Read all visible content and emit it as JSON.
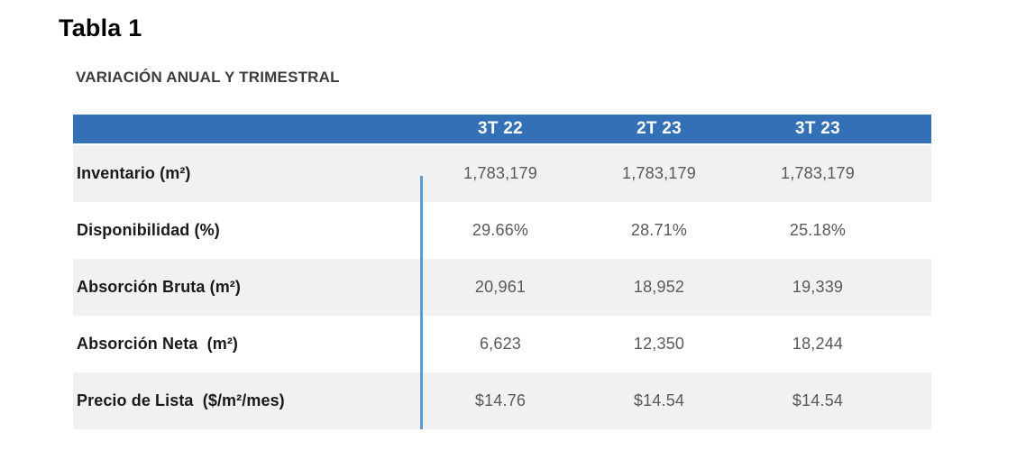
{
  "page": {
    "title": "Tabla 1"
  },
  "table": {
    "subtitle": "VARIACIÓN ANUAL Y TRIMESTRAL",
    "columns": [
      "3T 22",
      "2T 23",
      "3T 23"
    ],
    "rows": [
      {
        "label": "Inventario (m²)",
        "values": [
          "1,783,179",
          "1,783,179",
          "1,783,179"
        ]
      },
      {
        "label": "Disponibilidad (%)",
        "values": [
          "29.66%",
          "28.71%",
          "25.18%"
        ]
      },
      {
        "label": "Absorción Bruta (m²)",
        "values": [
          "20,961",
          "18,952",
          "19,339"
        ]
      },
      {
        "label": "Absorción Neta  (m²)",
        "values": [
          "6,623",
          "12,350",
          "18,244"
        ]
      },
      {
        "label": "Precio de Lista  ($/m²/mes)",
        "values": [
          "$14.76",
          "$14.54",
          "$14.54"
        ]
      }
    ],
    "colors": {
      "header_background": "#3470B5",
      "header_text": "#FFFFFF",
      "divider_line": "#5B9BD5",
      "row_alternate": "#F1F1F1",
      "value_text": "#595959"
    }
  }
}
